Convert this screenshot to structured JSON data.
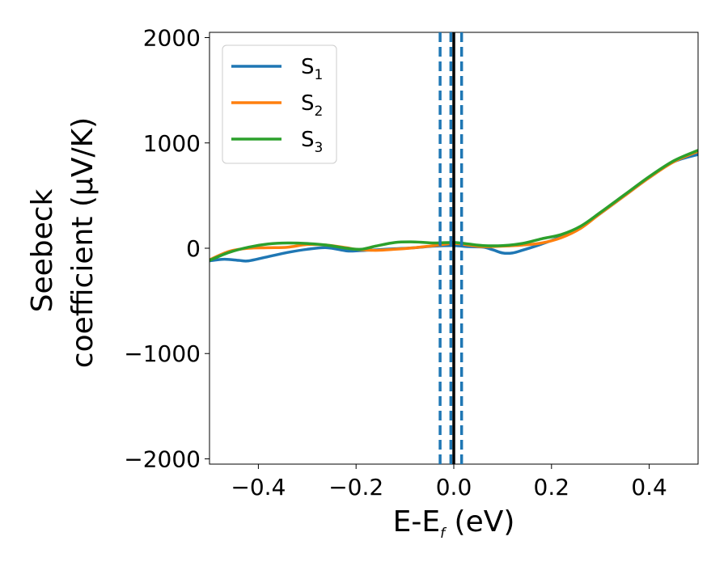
{
  "chart_data": {
    "type": "line",
    "xlabel": {
      "main": "E-E",
      "sub": "f",
      "suffix": " (eV)"
    },
    "ylabel": {
      "line1": "Seebeck",
      "line2": "coefficient  (μV/K)"
    },
    "xlim": [
      -0.5,
      0.5
    ],
    "ylim": [
      -2050,
      2050
    ],
    "xticks": [
      -0.4,
      -0.2,
      0.0,
      0.2,
      0.4
    ],
    "xtick_labels": [
      "−0.4",
      "−0.2",
      "0.0",
      "0.2",
      "0.4"
    ],
    "yticks": [
      -2000,
      -1000,
      0,
      1000,
      2000
    ],
    "ytick_labels": [
      "−2000",
      "−1000",
      "0",
      "1000",
      "2000"
    ],
    "grid": false,
    "legend_position": "top-left",
    "series": [
      {
        "name": "S",
        "sub": "1",
        "color": "#1f77b4",
        "x": [
          -0.5,
          -0.47,
          -0.44,
          -0.42,
          -0.38,
          -0.34,
          -0.3,
          -0.26,
          -0.22,
          -0.2,
          -0.16,
          -0.12,
          -0.08,
          -0.04,
          0.0,
          0.03,
          0.06,
          0.08,
          0.1,
          0.12,
          0.14,
          0.18,
          0.22,
          0.26,
          0.3,
          0.35,
          0.4,
          0.45,
          0.5
        ],
        "y": [
          -120,
          -105,
          -115,
          -120,
          -80,
          -40,
          -10,
          5,
          -25,
          -25,
          -15,
          -5,
          5,
          20,
          25,
          15,
          10,
          -15,
          -45,
          -45,
          -20,
          40,
          110,
          200,
          330,
          500,
          670,
          820,
          890
        ]
      },
      {
        "name": "S",
        "sub": "2",
        "color": "#ff7f0e",
        "x": [
          -0.5,
          -0.46,
          -0.42,
          -0.38,
          -0.34,
          -0.3,
          -0.26,
          -0.22,
          -0.2,
          -0.16,
          -0.12,
          -0.08,
          -0.04,
          0.0,
          0.03,
          0.06,
          0.1,
          0.14,
          0.18,
          0.22,
          0.26,
          0.3,
          0.35,
          0.4,
          0.45,
          0.5
        ],
        "y": [
          -110,
          -30,
          0,
          5,
          10,
          35,
          30,
          5,
          -10,
          -20,
          -10,
          5,
          25,
          45,
          30,
          15,
          20,
          30,
          50,
          100,
          190,
          330,
          500,
          670,
          820,
          920
        ]
      },
      {
        "name": "S",
        "sub": "3",
        "color": "#2ca02c",
        "x": [
          -0.5,
          -0.46,
          -0.42,
          -0.38,
          -0.34,
          -0.3,
          -0.26,
          -0.22,
          -0.19,
          -0.16,
          -0.12,
          -0.08,
          -0.04,
          0.0,
          0.03,
          0.06,
          0.1,
          0.14,
          0.18,
          0.22,
          0.26,
          0.3,
          0.35,
          0.4,
          0.45,
          0.5
        ],
        "y": [
          -115,
          -40,
          10,
          40,
          50,
          45,
          30,
          0,
          -10,
          20,
          55,
          60,
          50,
          55,
          40,
          25,
          25,
          45,
          90,
          130,
          210,
          340,
          510,
          680,
          830,
          930
        ]
      }
    ],
    "vlines": [
      {
        "x": -0.028,
        "style": "dashed",
        "color": "#1f77b4"
      },
      {
        "x": -0.006,
        "style": "dashed",
        "color": "#1f77b4"
      },
      {
        "x": 0.016,
        "style": "dashed",
        "color": "#1f77b4"
      },
      {
        "x": 0.0,
        "style": "solid",
        "color": "#000000"
      }
    ]
  }
}
